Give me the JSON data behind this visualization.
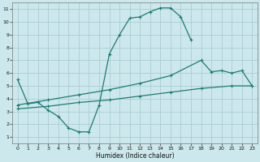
{
  "xlabel": "Humidex (Indice chaleur)",
  "bg_color": "#cce8ec",
  "line_color": "#1e7b72",
  "grid_color": "#aacdd4",
  "series1_x": [
    0,
    1,
    2,
    3,
    4,
    5,
    6,
    7,
    8,
    9,
    10,
    11,
    12,
    13,
    14,
    15,
    16,
    17,
    18
  ],
  "series1_y": [
    5.5,
    3.6,
    3.7,
    3.1,
    2.6,
    1.7,
    1.4,
    1.4,
    3.5,
    7.5,
    9.0,
    10.3,
    10.4,
    10.8,
    11.1,
    11.1,
    10.4,
    8.6,
    null
  ],
  "series2_x": [
    0,
    3,
    6,
    9,
    12,
    15,
    18,
    19,
    20,
    21,
    22,
    23
  ],
  "series2_y": [
    3.5,
    3.9,
    4.3,
    4.7,
    5.2,
    5.8,
    7.0,
    6.1,
    6.2,
    6.0,
    6.2,
    5.0
  ],
  "series3_x": [
    0,
    3,
    6,
    9,
    12,
    15,
    18,
    21,
    23
  ],
  "series3_y": [
    3.2,
    3.4,
    3.7,
    3.9,
    4.2,
    4.5,
    4.8,
    5.0,
    5.0
  ],
  "xlim": [
    -0.5,
    23.5
  ],
  "ylim": [
    0.5,
    11.5
  ],
  "yticks": [
    1,
    2,
    3,
    4,
    5,
    6,
    7,
    8,
    9,
    10,
    11
  ],
  "xticks": [
    0,
    1,
    2,
    3,
    4,
    5,
    6,
    7,
    8,
    9,
    10,
    11,
    12,
    13,
    14,
    15,
    16,
    17,
    18,
    19,
    20,
    21,
    22,
    23
  ]
}
